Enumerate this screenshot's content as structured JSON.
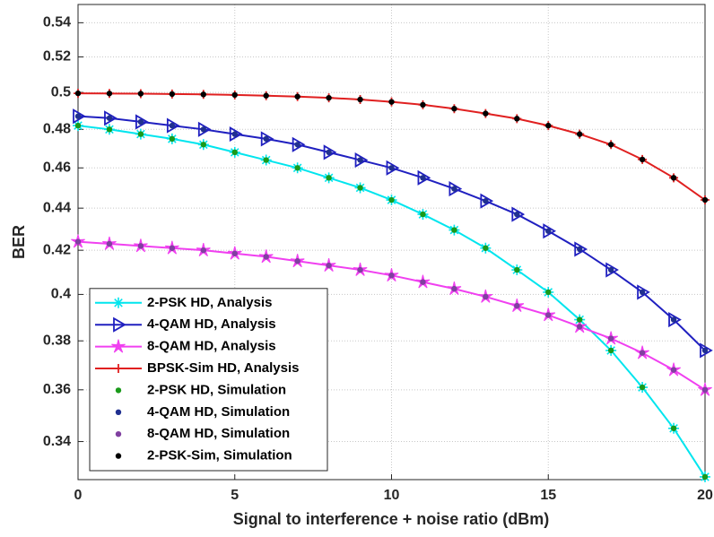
{
  "chart_data": {
    "type": "line",
    "xlabel": "Signal to interference + noise ratio (dBm)",
    "ylabel": "BER",
    "x": [
      0,
      1,
      2,
      3,
      4,
      5,
      6,
      7,
      8,
      9,
      10,
      11,
      12,
      13,
      14,
      15,
      16,
      17,
      18,
      19,
      20
    ],
    "xlim": [
      0,
      20
    ],
    "xticks": [
      0,
      5,
      10,
      15,
      20
    ],
    "ylim": [
      0.326,
      0.551
    ],
    "yticks": [
      0.34,
      0.36,
      0.38,
      0.4,
      0.42,
      0.44,
      0.46,
      0.48,
      0.5,
      0.52,
      0.54
    ],
    "ylog": true,
    "grid": true,
    "legend": "lower left",
    "series": [
      {
        "name": "2-PSK HD, Analysis",
        "color": "#00e5ee",
        "marker": "asterisk",
        "line": true,
        "values": [
          0.482,
          0.48,
          0.4775,
          0.475,
          0.472,
          0.468,
          0.464,
          0.46,
          0.455,
          0.45,
          0.444,
          0.437,
          0.4295,
          0.421,
          0.411,
          0.401,
          0.389,
          0.376,
          0.361,
          0.345,
          0.327
        ]
      },
      {
        "name": "4-QAM HD, Analysis",
        "color": "#2020c0",
        "marker": "triangle-right",
        "line": true,
        "values": [
          0.487,
          0.486,
          0.484,
          0.482,
          0.48,
          0.4775,
          0.475,
          0.472,
          0.468,
          0.464,
          0.46,
          0.455,
          0.4495,
          0.4435,
          0.437,
          0.429,
          0.4205,
          0.411,
          0.401,
          0.389,
          0.376
        ]
      },
      {
        "name": "8-QAM HD, Analysis",
        "color": "#f040f0",
        "marker": "star",
        "line": true,
        "values": [
          0.424,
          0.423,
          0.422,
          0.421,
          0.42,
          0.4185,
          0.417,
          0.415,
          0.413,
          0.411,
          0.4085,
          0.4055,
          0.4025,
          0.399,
          0.395,
          0.391,
          0.386,
          0.381,
          0.375,
          0.368,
          0.36
        ]
      },
      {
        "name": "BPSK-Sim HD, Analysis",
        "color": "#e02020",
        "marker": "plus",
        "line": true,
        "values": [
          0.4995,
          0.4994,
          0.4993,
          0.4991,
          0.4989,
          0.4986,
          0.4982,
          0.4977,
          0.497,
          0.4961,
          0.4948,
          0.4932,
          0.4911,
          0.4885,
          0.4857,
          0.482,
          0.4775,
          0.472,
          0.4643,
          0.455,
          0.444
        ]
      },
      {
        "name": "2-PSK HD, Simulation",
        "color": "#1a9a1a",
        "marker": "dot",
        "line": false,
        "values": [
          0.482,
          0.48,
          0.4775,
          0.475,
          0.472,
          0.468,
          0.464,
          0.46,
          0.455,
          0.45,
          0.444,
          0.437,
          0.4295,
          0.421,
          0.411,
          0.401,
          0.389,
          0.376,
          0.361,
          0.345,
          0.327
        ]
      },
      {
        "name": "4-QAM HD, Simulation",
        "color": "#203090",
        "marker": "dot",
        "line": false,
        "values": [
          0.487,
          0.486,
          0.484,
          0.482,
          0.48,
          0.4775,
          0.475,
          0.472,
          0.468,
          0.464,
          0.46,
          0.455,
          0.4495,
          0.4435,
          0.437,
          0.429,
          0.4205,
          0.411,
          0.401,
          0.389,
          0.376
        ]
      },
      {
        "name": "8-QAM HD, Simulation",
        "color": "#8040a0",
        "marker": "dot",
        "line": false,
        "values": [
          0.424,
          0.423,
          0.422,
          0.421,
          0.42,
          0.4185,
          0.417,
          0.415,
          0.413,
          0.411,
          0.4085,
          0.4055,
          0.4025,
          0.399,
          0.395,
          0.391,
          0.386,
          0.381,
          0.375,
          0.368,
          0.36
        ]
      },
      {
        "name": "2-PSK-Sim, Simulation",
        "color": "#000000",
        "marker": "dot",
        "line": false,
        "values": [
          0.4995,
          0.4994,
          0.4993,
          0.4991,
          0.4989,
          0.4986,
          0.4982,
          0.4977,
          0.497,
          0.4961,
          0.4948,
          0.4932,
          0.4911,
          0.4885,
          0.4857,
          0.482,
          0.4775,
          0.472,
          0.4643,
          0.455,
          0.444
        ]
      }
    ]
  }
}
